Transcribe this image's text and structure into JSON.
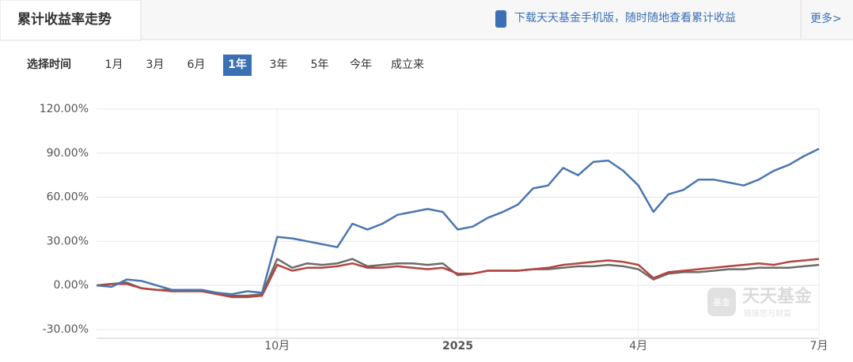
{
  "header": {
    "title": "累计收益率走势",
    "promo": "下载天天基金手机版，随时随地查看累计收益",
    "more": "更多>"
  },
  "range_selector": {
    "label": "选择时间",
    "options": [
      "1月",
      "3月",
      "6月",
      "1年",
      "3年",
      "5年",
      "今年",
      "成立来"
    ],
    "selected": 3
  },
  "watermark": {
    "logo": "基金",
    "name": "天天基金",
    "slogan": "链接您与财富"
  },
  "chart_data": {
    "type": "line",
    "categories": [
      null,
      null,
      null,
      null,
      null,
      null,
      null,
      null,
      null,
      null,
      null,
      null,
      "10月",
      null,
      null,
      null,
      null,
      null,
      null,
      null,
      null,
      null,
      null,
      null,
      "2025",
      null,
      null,
      null,
      null,
      null,
      null,
      null,
      null,
      null,
      null,
      null,
      "4月",
      null,
      null,
      null,
      null,
      null,
      null,
      null,
      null,
      null,
      null,
      null,
      "7月"
    ],
    "series": [
      {
        "color": "#4a76b0",
        "values": [
          0,
          -1,
          4,
          3,
          0,
          -3,
          -3,
          -3,
          -5,
          -6,
          -4,
          -5,
          33,
          32,
          30,
          28,
          26,
          42,
          38,
          42,
          48,
          50,
          52,
          50,
          38,
          40,
          46,
          50,
          55,
          66,
          68,
          80,
          75,
          84,
          85,
          78,
          68,
          50,
          62,
          65,
          72,
          72,
          70,
          68,
          72,
          78,
          82,
          88,
          93
        ]
      },
      {
        "color": "#b5443f",
        "values": [
          0,
          1,
          1,
          -2,
          -3,
          -4,
          -4,
          -4,
          -6,
          -8,
          -8,
          -7,
          14,
          10,
          12,
          12,
          13,
          15,
          12,
          12,
          13,
          12,
          11,
          12,
          8,
          8,
          10,
          10,
          10,
          11,
          12,
          14,
          15,
          16,
          17,
          16,
          14,
          5,
          9,
          10,
          11,
          12,
          13,
          14,
          15,
          14,
          16,
          17,
          18
        ]
      },
      {
        "color": "#6b6b6b",
        "values": [
          0,
          1,
          2,
          -2,
          -3,
          -3,
          -3,
          -4,
          -5,
          -7,
          -7,
          -6,
          18,
          12,
          15,
          14,
          15,
          18,
          13,
          14,
          15,
          15,
          14,
          15,
          7,
          8,
          10,
          10,
          10,
          11,
          11,
          12,
          13,
          13,
          14,
          13,
          11,
          4,
          8,
          9,
          9,
          10,
          11,
          11,
          12,
          12,
          12,
          13,
          14
        ]
      }
    ],
    "ylim": [
      -36,
      120
    ],
    "yticks": [
      {
        "value": -30,
        "label": "-30.00%"
      },
      {
        "value": 0,
        "label": "0.00%"
      },
      {
        "value": 30,
        "label": "30.00%"
      },
      {
        "value": 60,
        "label": "60.00%"
      },
      {
        "value": 90,
        "label": "90.00%"
      },
      {
        "value": 120,
        "label": "120.00%"
      }
    ],
    "grid": true
  }
}
